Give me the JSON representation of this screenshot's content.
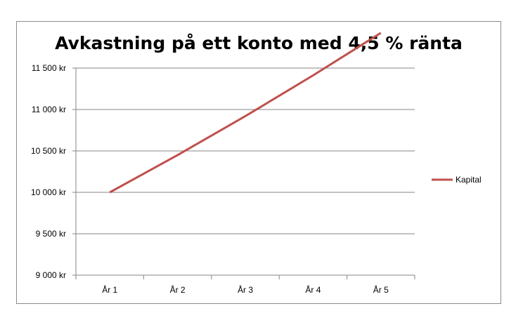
{
  "chart_data": {
    "type": "line",
    "title": "Avkastning på ett konto med 4,5 % ränta",
    "xlabel": "",
    "ylabel": "",
    "categories": [
      "År 1",
      "År 2",
      "År 3",
      "År 4",
      "År 5"
    ],
    "y_ticks": [
      "9 000 kr",
      "9 500 kr",
      "10 000 kr",
      "10 500 kr",
      "11 000 kr",
      "11 500 kr"
    ],
    "ylim": [
      9000,
      11500
    ],
    "grid": true,
    "legend_position": "right",
    "series": [
      {
        "name": "Kapital",
        "values": [
          10000,
          10450,
          10920,
          11412,
          11925
        ],
        "color": "#c0504d"
      }
    ]
  }
}
